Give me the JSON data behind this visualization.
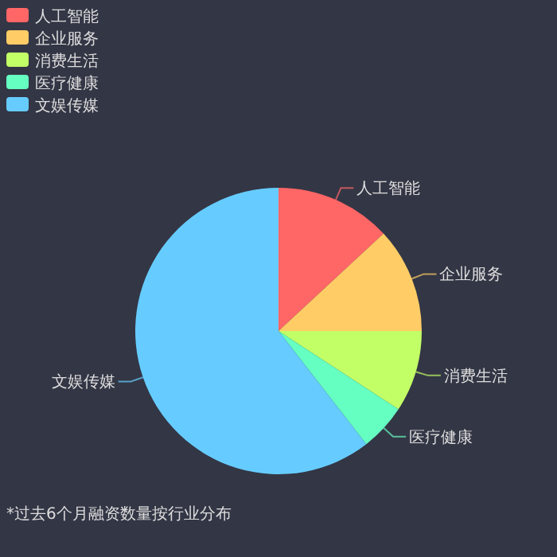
{
  "chart_data": {
    "type": "pie",
    "categories": [
      "人工智能",
      "企业服务",
      "消费生活",
      "医疗健康",
      "文娱传媒"
    ],
    "values": [
      13.1,
      11.9,
      9.2,
      5.3,
      60.5
    ],
    "colors": [
      "#ff6666",
      "#ffcc66",
      "#c2ff66",
      "#66ffc2",
      "#66ccff"
    ],
    "legend": "top left",
    "annotations": [
      "*过去6个月融资数量按行业分布"
    ]
  }
}
